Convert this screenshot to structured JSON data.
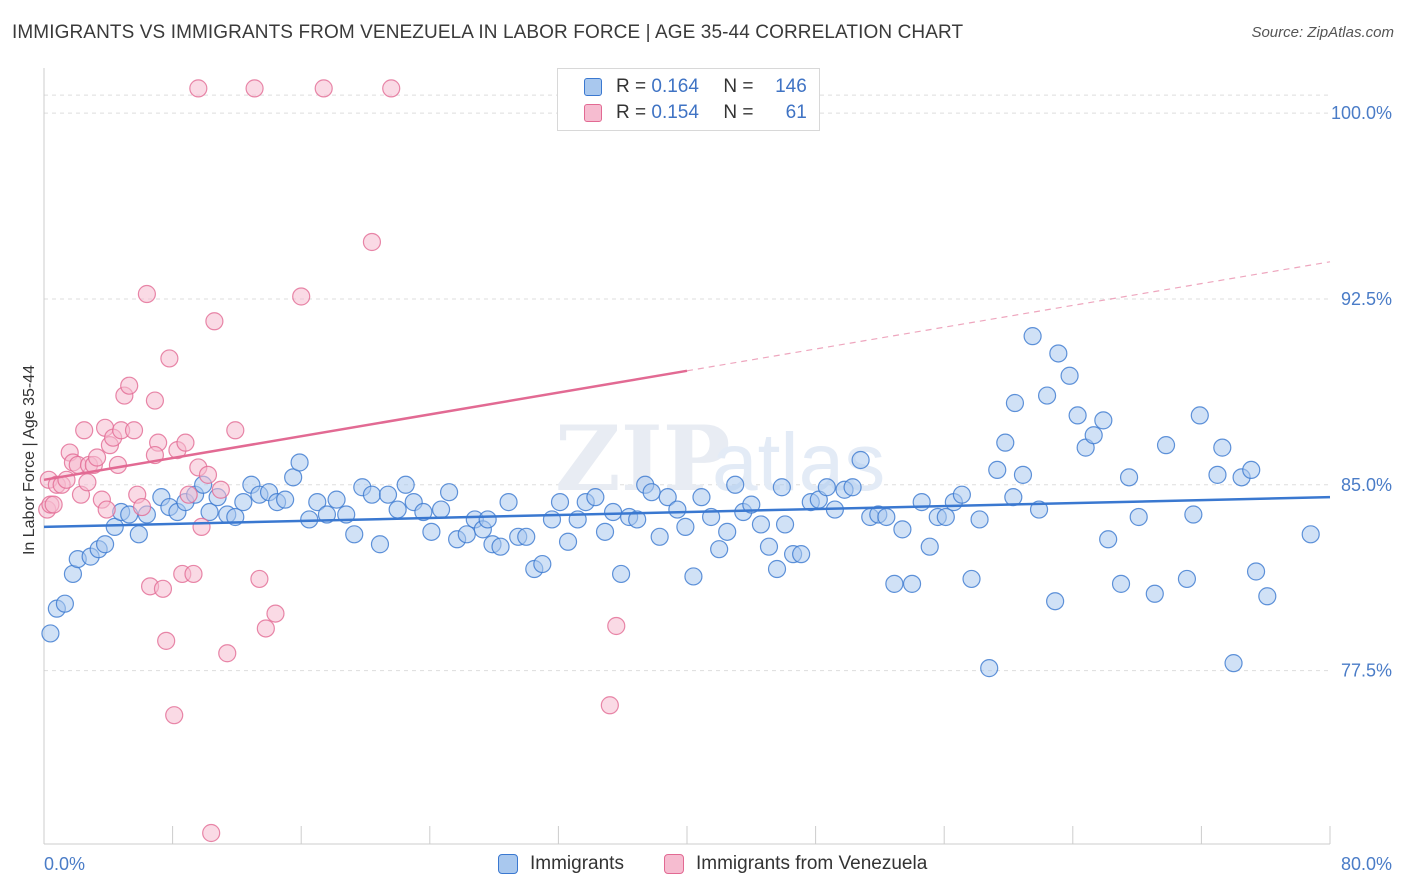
{
  "title": "IMMIGRANTS VS IMMIGRANTS FROM VENEZUELA IN LABOR FORCE | AGE 35-44 CORRELATION CHART",
  "source": "Source: ZipAtlas.com",
  "watermark": "ZIPatlas",
  "colors": {
    "blue": "#3a78d0",
    "blue_fill": "#a9c8ee",
    "pink": "#e26a93",
    "pink_fill": "#f6bcd0",
    "grid": "#dddddd",
    "axis_label": "#4a7cc7"
  },
  "legend": {
    "rows": [
      {
        "r_label": "R =",
        "r_value": "0.164",
        "n_label": "N =",
        "n_value": "146"
      },
      {
        "r_label": "R =",
        "r_value": "0.154",
        "n_label": "N =",
        "n_value": "61"
      }
    ],
    "series_names": [
      "Immigrants",
      "Immigrants from Venezuela"
    ]
  },
  "chart_data": {
    "type": "scatter",
    "xlabel": "",
    "ylabel": "In Labor Force | Age 35-44",
    "xlim": [
      0,
      80
    ],
    "ylim": [
      70.5,
      101.5
    ],
    "x_tick_labels": [
      "0.0%",
      "80.0%"
    ],
    "y_ticks": [
      77.5,
      85.0,
      92.5,
      100.0
    ],
    "y_tick_labels": [
      "77.5%",
      "85.0%",
      "92.5%",
      "100.0%"
    ],
    "grid": true,
    "series": [
      {
        "name": "Immigrants",
        "trend": {
          "x0": 0,
          "y0": 83.3,
          "x1": 80,
          "y1": 84.5,
          "solid_until": 80
        },
        "points": [
          [
            0.4,
            79.0
          ],
          [
            0.8,
            80.0
          ],
          [
            1.3,
            80.2
          ],
          [
            1.8,
            81.4
          ],
          [
            2.1,
            82.0
          ],
          [
            2.9,
            82.1
          ],
          [
            3.4,
            82.4
          ],
          [
            3.8,
            82.6
          ],
          [
            4.4,
            83.3
          ],
          [
            4.8,
            83.9
          ],
          [
            5.3,
            83.8
          ],
          [
            5.9,
            83.0
          ],
          [
            6.4,
            83.8
          ],
          [
            7.3,
            84.5
          ],
          [
            7.8,
            84.1
          ],
          [
            8.3,
            83.9
          ],
          [
            8.8,
            84.3
          ],
          [
            9.4,
            84.6
          ],
          [
            9.9,
            85.0
          ],
          [
            10.3,
            83.9
          ],
          [
            10.8,
            84.5
          ],
          [
            11.4,
            83.8
          ],
          [
            11.9,
            83.7
          ],
          [
            12.4,
            84.3
          ],
          [
            12.9,
            85.0
          ],
          [
            13.4,
            84.6
          ],
          [
            14.0,
            84.7
          ],
          [
            14.5,
            84.3
          ],
          [
            15.0,
            84.4
          ],
          [
            15.5,
            85.3
          ],
          [
            15.9,
            85.9
          ],
          [
            16.5,
            83.6
          ],
          [
            17.0,
            84.3
          ],
          [
            17.6,
            83.8
          ],
          [
            18.2,
            84.4
          ],
          [
            18.8,
            83.8
          ],
          [
            19.3,
            83.0
          ],
          [
            19.8,
            84.9
          ],
          [
            20.4,
            84.6
          ],
          [
            20.9,
            82.6
          ],
          [
            21.4,
            84.6
          ],
          [
            22.0,
            84.0
          ],
          [
            22.5,
            85.0
          ],
          [
            23.0,
            84.3
          ],
          [
            23.6,
            83.9
          ],
          [
            24.1,
            83.1
          ],
          [
            24.7,
            84.0
          ],
          [
            25.2,
            84.7
          ],
          [
            25.7,
            82.8
          ],
          [
            26.3,
            83.0
          ],
          [
            26.8,
            83.6
          ],
          [
            27.3,
            83.2
          ],
          [
            27.9,
            82.6
          ],
          [
            28.4,
            82.5
          ],
          [
            28.9,
            84.3
          ],
          [
            29.5,
            82.9
          ],
          [
            30.0,
            82.9
          ],
          [
            30.5,
            81.6
          ],
          [
            31.0,
            81.8
          ],
          [
            31.6,
            83.6
          ],
          [
            32.1,
            84.3
          ],
          [
            32.6,
            82.7
          ],
          [
            33.2,
            83.6
          ],
          [
            33.7,
            84.3
          ],
          [
            34.3,
            84.5
          ],
          [
            34.9,
            83.1
          ],
          [
            35.4,
            83.9
          ],
          [
            35.9,
            81.4
          ],
          [
            36.4,
            83.7
          ],
          [
            36.9,
            83.6
          ],
          [
            37.4,
            85.0
          ],
          [
            37.8,
            84.7
          ],
          [
            38.3,
            82.9
          ],
          [
            38.8,
            84.5
          ],
          [
            39.4,
            84.0
          ],
          [
            39.9,
            83.3
          ],
          [
            40.4,
            81.3
          ],
          [
            40.9,
            84.5
          ],
          [
            41.5,
            83.7
          ],
          [
            42.0,
            82.4
          ],
          [
            42.5,
            83.1
          ],
          [
            43.0,
            85.0
          ],
          [
            43.5,
            83.9
          ],
          [
            44.0,
            84.2
          ],
          [
            44.6,
            83.4
          ],
          [
            45.1,
            82.5
          ],
          [
            45.6,
            81.6
          ],
          [
            46.1,
            83.4
          ],
          [
            46.6,
            82.2
          ],
          [
            47.1,
            82.2
          ],
          [
            47.7,
            84.3
          ],
          [
            48.2,
            84.4
          ],
          [
            48.7,
            84.9
          ],
          [
            49.2,
            84.0
          ],
          [
            49.8,
            84.8
          ],
          [
            50.3,
            84.9
          ],
          [
            50.8,
            86.0
          ],
          [
            51.4,
            83.7
          ],
          [
            51.9,
            83.8
          ],
          [
            52.4,
            83.7
          ],
          [
            52.9,
            81.0
          ],
          [
            53.4,
            83.2
          ],
          [
            54.0,
            81.0
          ],
          [
            54.6,
            84.3
          ],
          [
            55.1,
            82.5
          ],
          [
            55.6,
            83.7
          ],
          [
            56.1,
            83.7
          ],
          [
            56.6,
            84.3
          ],
          [
            57.1,
            84.6
          ],
          [
            57.7,
            81.2
          ],
          [
            58.2,
            83.6
          ],
          [
            58.8,
            77.6
          ],
          [
            59.3,
            85.6
          ],
          [
            59.8,
            86.7
          ],
          [
            60.4,
            88.3
          ],
          [
            60.9,
            85.4
          ],
          [
            61.5,
            91.0
          ],
          [
            61.9,
            84.0
          ],
          [
            62.4,
            88.6
          ],
          [
            62.9,
            80.3
          ],
          [
            63.1,
            90.3
          ],
          [
            63.8,
            89.4
          ],
          [
            64.3,
            87.8
          ],
          [
            64.8,
            86.5
          ],
          [
            65.3,
            87.0
          ],
          [
            65.9,
            87.6
          ],
          [
            66.2,
            82.8
          ],
          [
            67.0,
            81.0
          ],
          [
            67.5,
            85.3
          ],
          [
            68.1,
            83.7
          ],
          [
            69.1,
            80.6
          ],
          [
            69.8,
            86.6
          ],
          [
            71.1,
            81.2
          ],
          [
            71.5,
            83.8
          ],
          [
            71.9,
            87.8
          ],
          [
            73.0,
            85.4
          ],
          [
            73.3,
            86.5
          ],
          [
            74.0,
            77.8
          ],
          [
            74.5,
            85.3
          ],
          [
            75.1,
            85.6
          ],
          [
            75.4,
            81.5
          ],
          [
            76.1,
            80.5
          ],
          [
            78.8,
            83.0
          ],
          [
            60.3,
            84.5
          ],
          [
            45.9,
            84.9
          ],
          [
            27.6,
            83.6
          ]
        ]
      },
      {
        "name": "Immigrants from Venezuela",
        "trend": {
          "x0": 0,
          "y0": 85.2,
          "x1": 80,
          "y1": 94.0,
          "solid_until": 40
        },
        "points": [
          [
            0.2,
            84.0
          ],
          [
            0.3,
            85.2
          ],
          [
            0.4,
            84.2
          ],
          [
            0.6,
            84.2
          ],
          [
            0.8,
            85.0
          ],
          [
            1.1,
            85.0
          ],
          [
            1.4,
            85.2
          ],
          [
            1.6,
            86.3
          ],
          [
            1.8,
            85.9
          ],
          [
            2.1,
            85.8
          ],
          [
            2.3,
            84.6
          ],
          [
            2.5,
            87.2
          ],
          [
            2.8,
            85.8
          ],
          [
            3.1,
            85.8
          ],
          [
            3.3,
            86.1
          ],
          [
            3.6,
            84.4
          ],
          [
            3.8,
            87.3
          ],
          [
            4.1,
            86.6
          ],
          [
            4.3,
            86.9
          ],
          [
            4.6,
            85.8
          ],
          [
            4.8,
            87.2
          ],
          [
            5.0,
            88.6
          ],
          [
            5.3,
            89.0
          ],
          [
            5.6,
            87.2
          ],
          [
            5.8,
            84.6
          ],
          [
            6.1,
            84.1
          ],
          [
            6.4,
            92.7
          ],
          [
            6.6,
            80.9
          ],
          [
            6.9,
            88.4
          ],
          [
            7.1,
            86.7
          ],
          [
            7.4,
            80.8
          ],
          [
            7.6,
            78.7
          ],
          [
            7.8,
            90.1
          ],
          [
            8.1,
            75.7
          ],
          [
            8.3,
            86.4
          ],
          [
            8.6,
            81.4
          ],
          [
            8.8,
            86.7
          ],
          [
            9.0,
            84.6
          ],
          [
            9.3,
            81.4
          ],
          [
            9.6,
            85.7
          ],
          [
            9.8,
            83.3
          ],
          [
            10.2,
            85.4
          ],
          [
            10.4,
            70.9
          ],
          [
            10.6,
            91.6
          ],
          [
            11.0,
            84.8
          ],
          [
            11.4,
            78.2
          ],
          [
            11.9,
            87.2
          ],
          [
            13.4,
            81.2
          ],
          [
            13.8,
            79.2
          ],
          [
            14.4,
            79.8
          ],
          [
            9.6,
            101.0
          ],
          [
            13.1,
            101.0
          ],
          [
            17.4,
            101.0
          ],
          [
            21.6,
            101.0
          ],
          [
            16.0,
            92.6
          ],
          [
            20.4,
            94.8
          ],
          [
            35.6,
            79.3
          ],
          [
            35.2,
            76.1
          ],
          [
            3.9,
            84.0
          ],
          [
            2.7,
            85.1
          ],
          [
            6.9,
            86.2
          ]
        ]
      }
    ]
  }
}
